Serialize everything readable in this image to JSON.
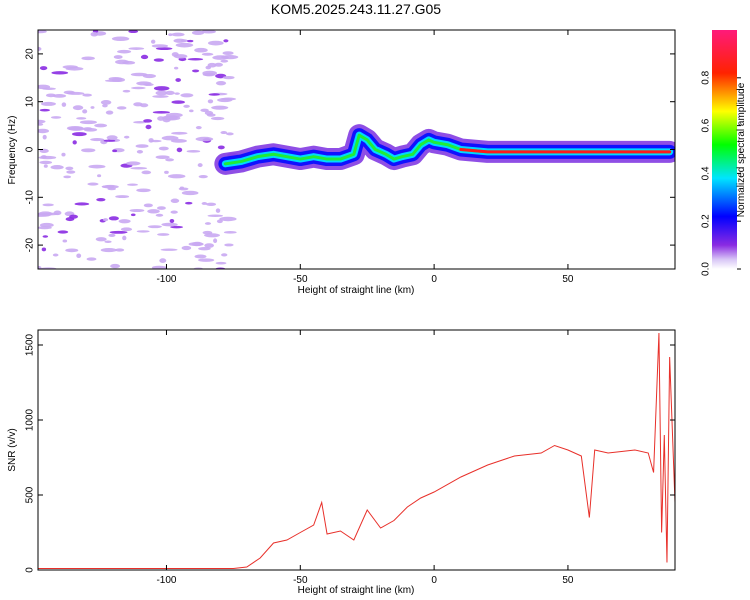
{
  "chart_data": [
    {
      "type": "heatmap",
      "title": "KOM5.2025.243.11.27.G05",
      "xlabel": "Height of straight line (km)",
      "ylabel": "Frequency (Hz)",
      "xlim": [
        -148,
        90
      ],
      "ylim": [
        -25,
        25
      ],
      "xticks": [
        "-100",
        "-50",
        "0",
        "50"
      ],
      "yticks": [
        "20",
        "10",
        "0",
        "-10",
        "-20"
      ],
      "ridge": {
        "x": [
          -78,
          -72,
          -66,
          -60,
          -55,
          -50,
          -45,
          -40,
          -35,
          -30,
          -28,
          -25,
          -22,
          -18,
          -15,
          -12,
          -8,
          -5,
          -2,
          0,
          5,
          10,
          20,
          40,
          60,
          80,
          88
        ],
        "frequency": [
          -3,
          -2.5,
          -1.5,
          -1,
          -1.5,
          -2,
          -1.5,
          -2,
          -2,
          -1,
          3,
          2,
          0,
          -1,
          -2,
          -1.5,
          -1,
          1,
          2,
          1.5,
          1,
          0,
          -0.5,
          -0.5,
          -0.5,
          -0.5,
          -0.5
        ]
      },
      "colorbar": {
        "label": "Normalized spectral amplitude",
        "ticks": [
          "0.0",
          "0.2",
          "0.4",
          "0.6",
          "0.8"
        ],
        "range": [
          0,
          1
        ]
      }
    },
    {
      "type": "line",
      "xlabel": "Height of straight line (km)",
      "ylabel": "SNR (v/v)",
      "xlim": [
        -148,
        90
      ],
      "ylim": [
        0,
        1600
      ],
      "xticks": [
        "-100",
        "-50",
        "0",
        "50"
      ],
      "yticks": [
        "1500",
        "1000",
        "500",
        "0"
      ],
      "color": "#e8302a",
      "series": [
        {
          "x": [
            -148,
            -130,
            -110,
            -90,
            -75,
            -70,
            -65,
            -60,
            -55,
            -50,
            -45,
            -42,
            -40,
            -35,
            -30,
            -25,
            -20,
            -15,
            -10,
            -5,
            0,
            10,
            20,
            30,
            40,
            45,
            50,
            55,
            58,
            60,
            65,
            70,
            75,
            80,
            82,
            84,
            85,
            86,
            87,
            88,
            90
          ],
          "y": [
            10,
            10,
            10,
            10,
            10,
            20,
            80,
            180,
            200,
            250,
            300,
            450,
            240,
            260,
            200,
            400,
            280,
            330,
            420,
            480,
            520,
            620,
            700,
            760,
            780,
            830,
            800,
            760,
            350,
            800,
            780,
            790,
            800,
            780,
            650,
            1580,
            250,
            900,
            50,
            1420,
            450
          ]
        }
      ]
    }
  ]
}
